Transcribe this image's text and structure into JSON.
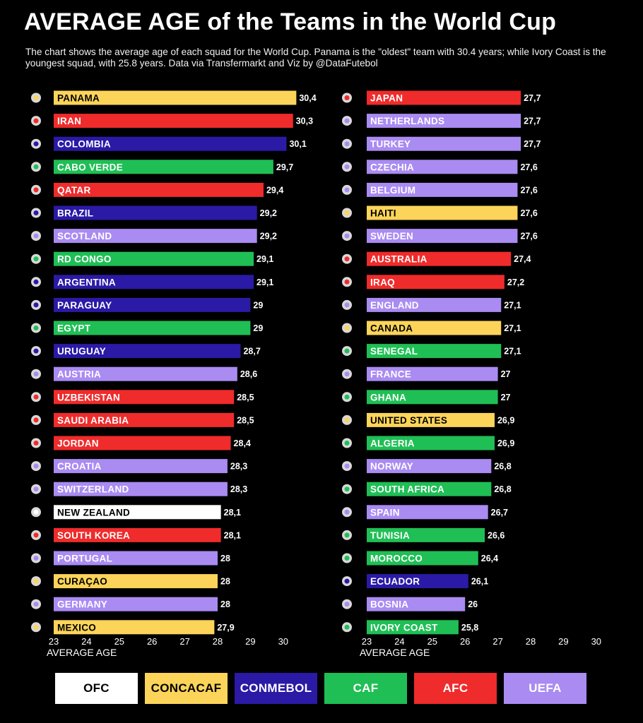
{
  "header": {
    "title": "AVERAGE AGE of the Teams in the World Cup",
    "subtitle": "The chart shows the average age of each squad for the World Cup. Panama is the \"oldest\" team with 30.4 years; while Ivory Coast is the youngest squad, with 25.8 years. Data via Transfermarkt and Viz by @DataFutebol"
  },
  "confederation_colors": {
    "OFC": "#ffffff",
    "CONCACAF": "#fcd45a",
    "CONMEBOL": "#2a1aa6",
    "CAF": "#1fbf55",
    "AFC": "#ef2b2b",
    "UEFA": "#a98bf2"
  },
  "legend": {
    "items": [
      {
        "label": "OFC",
        "color": "#ffffff",
        "text_color": "#000000"
      },
      {
        "label": "CONCACAF",
        "color": "#fcd45a",
        "text_color": "#000000"
      },
      {
        "label": "CONMEBOL",
        "color": "#2a1aa6",
        "text_color": "#ffffff"
      },
      {
        "label": "CAF",
        "color": "#1fbf55",
        "text_color": "#ffffff"
      },
      {
        "label": "AFC",
        "color": "#ef2b2b",
        "text_color": "#ffffff"
      },
      {
        "label": "UEFA",
        "color": "#a98bf2",
        "text_color": "#ffffff"
      }
    ]
  },
  "chart_data": [
    {
      "type": "bar",
      "orientation": "horizontal",
      "xlabel": "AVERAGE AGE",
      "xlim": [
        23,
        30
      ],
      "xticks": [
        23,
        24,
        25,
        26,
        27,
        28,
        29,
        30
      ],
      "categories": [
        "PANAMA",
        "IRAN",
        "COLOMBIA",
        "CABO VERDE",
        "QATAR",
        "BRAZIL",
        "SCOTLAND",
        "RD CONGO",
        "ARGENTINA",
        "PARAGUAY",
        "EGYPT",
        "URUGUAY",
        "AUSTRIA",
        "UZBEKISTAN",
        "SAUDI ARABIA",
        "JORDAN",
        "CROATIA",
        "SWITZERLAND",
        "NEW ZEALAND",
        "SOUTH KOREA",
        "PORTUGAL",
        "CURAÇAO",
        "GERMANY",
        "MEXICO"
      ],
      "values": [
        30.4,
        30.3,
        30.1,
        29.7,
        29.4,
        29.2,
        29.2,
        29.1,
        29.1,
        29,
        29,
        28.7,
        28.6,
        28.5,
        28.5,
        28.4,
        28.3,
        28.3,
        28.1,
        28.1,
        28,
        28,
        28,
        27.9
      ],
      "value_labels": [
        "30,4",
        "30,3",
        "30,1",
        "29,7",
        "29,4",
        "29,2",
        "29,2",
        "29,1",
        "29,1",
        "29",
        "29",
        "28,7",
        "28,6",
        "28,5",
        "28,5",
        "28,4",
        "28,3",
        "28,3",
        "28,1",
        "28,1",
        "28",
        "28",
        "28",
        "27,9"
      ],
      "confederations": [
        "CONCACAF",
        "AFC",
        "CONMEBOL",
        "CAF",
        "AFC",
        "CONMEBOL",
        "UEFA",
        "CAF",
        "CONMEBOL",
        "CONMEBOL",
        "CAF",
        "CONMEBOL",
        "UEFA",
        "AFC",
        "AFC",
        "AFC",
        "UEFA",
        "UEFA",
        "OFC",
        "AFC",
        "UEFA",
        "CONCACAF",
        "UEFA",
        "CONCACAF"
      ],
      "flag_icons": [
        "panama-flag-icon",
        "iran-flag-icon",
        "colombia-flag-icon",
        "cabo-verde-flag-icon",
        "qatar-flag-icon",
        "brazil-flag-icon",
        "scotland-flag-icon",
        "rd-congo-flag-icon",
        "argentina-flag-icon",
        "paraguay-flag-icon",
        "egypt-flag-icon",
        "uruguay-flag-icon",
        "austria-flag-icon",
        "uzbekistan-flag-icon",
        "saudi-arabia-flag-icon",
        "jordan-flag-icon",
        "croatia-flag-icon",
        "switzerland-flag-icon",
        "new-zealand-flag-icon",
        "south-korea-flag-icon",
        "portugal-flag-icon",
        "curacao-flag-icon",
        "germany-flag-icon",
        "mexico-flag-icon"
      ]
    },
    {
      "type": "bar",
      "orientation": "horizontal",
      "xlabel": "AVERAGE AGE",
      "xlim": [
        23,
        30
      ],
      "xticks": [
        23,
        24,
        25,
        26,
        27,
        28,
        29,
        30
      ],
      "categories": [
        "JAPAN",
        "NETHERLANDS",
        "TURKEY",
        "CZECHIA",
        "BELGIUM",
        "HAITI",
        "SWEDEN",
        "AUSTRALIA",
        "IRAQ",
        "ENGLAND",
        "CANADA",
        "SENEGAL",
        "FRANCE",
        "GHANA",
        "UNITED STATES",
        "ALGERIA",
        "NORWAY",
        "SOUTH AFRICA",
        "SPAIN",
        "TUNISIA",
        "MOROCCO",
        "ECUADOR",
        "BOSNIA",
        "IVORY COAST"
      ],
      "values": [
        27.7,
        27.7,
        27.7,
        27.6,
        27.6,
        27.6,
        27.6,
        27.4,
        27.2,
        27.1,
        27.1,
        27.1,
        27,
        27,
        26.9,
        26.9,
        26.8,
        26.8,
        26.7,
        26.6,
        26.4,
        26.1,
        26,
        25.8
      ],
      "value_labels": [
        "27,7",
        "27,7",
        "27,7",
        "27,6",
        "27,6",
        "27,6",
        "27,6",
        "27,4",
        "27,2",
        "27,1",
        "27,1",
        "27,1",
        "27",
        "27",
        "26,9",
        "26,9",
        "26,8",
        "26,8",
        "26,7",
        "26,6",
        "26,4",
        "26,1",
        "26",
        "25,8"
      ],
      "confederations": [
        "AFC",
        "UEFA",
        "UEFA",
        "UEFA",
        "UEFA",
        "CONCACAF",
        "UEFA",
        "AFC",
        "AFC",
        "UEFA",
        "CONCACAF",
        "CAF",
        "UEFA",
        "CAF",
        "CONCACAF",
        "CAF",
        "UEFA",
        "CAF",
        "UEFA",
        "CAF",
        "CAF",
        "CONMEBOL",
        "UEFA",
        "CAF"
      ],
      "flag_icons": [
        "japan-flag-icon",
        "netherlands-flag-icon",
        "turkey-flag-icon",
        "czechia-flag-icon",
        "belgium-flag-icon",
        "haiti-flag-icon",
        "sweden-flag-icon",
        "australia-flag-icon",
        "iraq-flag-icon",
        "england-flag-icon",
        "canada-flag-icon",
        "senegal-flag-icon",
        "france-flag-icon",
        "ghana-flag-icon",
        "united-states-flag-icon",
        "algeria-flag-icon",
        "norway-flag-icon",
        "south-africa-flag-icon",
        "spain-flag-icon",
        "tunisia-flag-icon",
        "morocco-flag-icon",
        "ecuador-flag-icon",
        "bosnia-flag-icon",
        "ivory-coast-flag-icon"
      ]
    }
  ]
}
